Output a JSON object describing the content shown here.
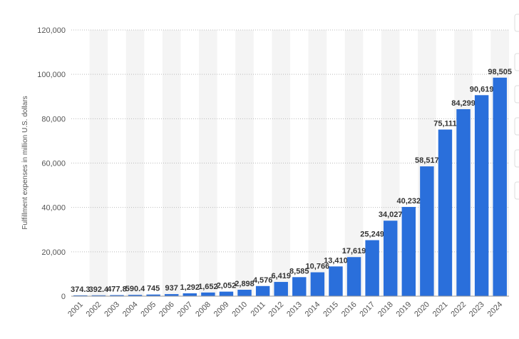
{
  "chart_data": {
    "type": "bar",
    "y_label": "Fulfillment expenses in million U.S. dollars",
    "categories": [
      "2001",
      "2002",
      "2003",
      "2004",
      "2005",
      "2006",
      "2007",
      "2008",
      "2009",
      "2010",
      "2011",
      "2012",
      "2013",
      "2014",
      "2015",
      "2016",
      "2017",
      "2018",
      "2019",
      "2020",
      "2021",
      "2022",
      "2023",
      "2024"
    ],
    "values": [
      374.3,
      392.4,
      477.8,
      590.4,
      745,
      937,
      1292,
      1652,
      2052,
      2898,
      4576,
      6419,
      8585,
      10766,
      13410,
      17619,
      25249,
      34027,
      40232,
      58517,
      75111,
      84299,
      90619,
      98505
    ],
    "value_labels": [
      "374.3",
      "392.4",
      "477.8",
      "590.4",
      "745",
      "937",
      "1,292",
      "1,652",
      "2,052",
      "2,898",
      "4,576",
      "6,419",
      "8,585",
      "10,766",
      "13,410",
      "17,619",
      "25,249",
      "34,027",
      "40,232",
      "58,517",
      "75,111",
      "84,299",
      "90,619",
      "98,505"
    ],
    "color": "#2a6fdb",
    "ylim": [
      0,
      120000
    ],
    "yticks": [
      0,
      {
        "value": 20000,
        "label": "20,000"
      },
      {
        "value": 40000,
        "label": "40,000"
      },
      {
        "value": 60000,
        "label": "60,000"
      },
      {
        "value": 80000,
        "label": "80,000"
      },
      {
        "value": 100000,
        "label": "100,000"
      },
      {
        "value": 120000,
        "label": "120,000"
      }
    ],
    "grid": true
  }
}
